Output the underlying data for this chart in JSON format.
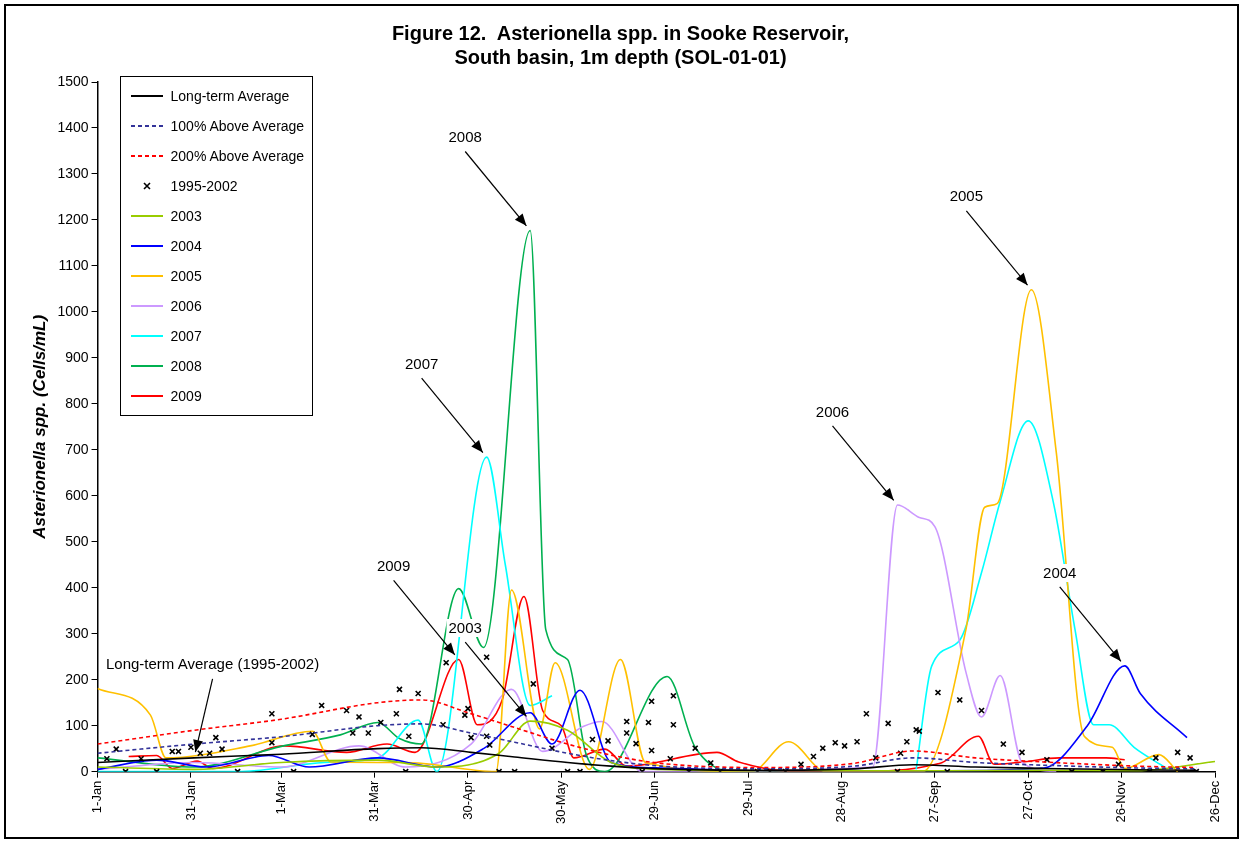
{
  "chart_data": {
    "type": "line",
    "title": "Figure 12.  Asterionella spp. in Sooke Reservoir,\nSouth basin, 1m depth (SOL-01-01)",
    "ylabel": "Asterionella spp. (Cells/mL)",
    "xlim": [
      "--01-01",
      "--12-26"
    ],
    "xticks": [
      {
        "value": "--01-01",
        "label": "1-Jan"
      },
      {
        "value": "--01-31",
        "label": "31-Jan"
      },
      {
        "value": "--03-01",
        "label": "1-Mar"
      },
      {
        "value": "--03-31",
        "label": "31-Mar"
      },
      {
        "value": "--04-30",
        "label": "30-Apr"
      },
      {
        "value": "--05-30",
        "label": "30-May"
      },
      {
        "value": "--06-29",
        "label": "29-Jun"
      },
      {
        "value": "--07-29",
        "label": "29-Jul"
      },
      {
        "value": "--08-28",
        "label": "28-Aug"
      },
      {
        "value": "--09-27",
        "label": "27-Sep"
      },
      {
        "value": "--10-27",
        "label": "27-Oct"
      },
      {
        "value": "--11-26",
        "label": "26-Nov"
      },
      {
        "value": "--12-26",
        "label": "26-Dec"
      }
    ],
    "ylim": [
      0,
      1500
    ],
    "yticks": [
      0,
      100,
      200,
      300,
      400,
      500,
      600,
      700,
      800,
      900,
      1000,
      1100,
      1200,
      1300,
      1400,
      1500
    ],
    "legend": "top left",
    "annotations": [
      {
        "text": "2008",
        "x": "--05-20",
        "y": 1177
      },
      {
        "text": "2005",
        "x": "--10-28",
        "y": 1048
      },
      {
        "text": "2007",
        "x": "--05-06",
        "y": 684
      },
      {
        "text": "2006",
        "x": "--09-15",
        "y": 580
      },
      {
        "text": "2003",
        "x": "--05-20",
        "y": 110
      },
      {
        "text": "2009",
        "x": "--04-27",
        "y": 244
      },
      {
        "text": "2004",
        "x": "--11-27",
        "y": 230
      },
      {
        "text": "Long-term Average (1995-2002)",
        "x": "--02-01",
        "y": 30
      }
    ],
    "series": [
      {
        "name": "Long-term Average",
        "type": "line",
        "marker": "none",
        "line_style": "solid",
        "color": "#000000",
        "x": [
          "--01-01",
          "--02-01",
          "--03-01",
          "--04-01",
          "--04-15",
          "--05-01",
          "--05-15",
          "--06-01",
          "--06-15",
          "--07-01",
          "--08-01",
          "--09-01",
          "--09-20",
          "--10-10",
          "--11-01",
          "--12-01",
          "--12-20"
        ],
        "values": [
          20,
          30,
          38,
          50,
          52,
          42,
          32,
          20,
          12,
          6,
          3,
          6,
          15,
          10,
          7,
          4,
          3
        ]
      },
      {
        "name": "100% Above Average",
        "type": "line",
        "marker": "none",
        "line_style": "dashed",
        "color": "#333399",
        "x": [
          "--01-01",
          "--02-01",
          "--03-01",
          "--04-01",
          "--04-15",
          "--05-01",
          "--05-15",
          "--06-01",
          "--06-15",
          "--07-01",
          "--08-01",
          "--09-01",
          "--09-20",
          "--10-10",
          "--11-01",
          "--12-01",
          "--12-20"
        ],
        "values": [
          40,
          60,
          76,
          100,
          104,
          84,
          64,
          40,
          24,
          12,
          6,
          12,
          30,
          20,
          14,
          8,
          6
        ]
      },
      {
        "name": "200% Above Average",
        "type": "line",
        "marker": "none",
        "line_style": "dashed",
        "color": "#ff0000",
        "x": [
          "--01-01",
          "--02-01",
          "--03-01",
          "--04-01",
          "--04-15",
          "--05-01",
          "--05-15",
          "--06-01",
          "--06-15",
          "--07-01",
          "--08-01",
          "--09-01",
          "--09-20",
          "--10-10",
          "--11-01",
          "--12-01",
          "--12-20"
        ],
        "values": [
          60,
          90,
          114,
          150,
          156,
          126,
          96,
          60,
          36,
          18,
          9,
          18,
          45,
          30,
          21,
          12,
          9
        ]
      },
      {
        "name": "1995-2002",
        "type": "scatter",
        "marker": "cross",
        "color": "#000000",
        "x": [
          "--01-04",
          "--01-07",
          "--01-15",
          "--01-25",
          "--01-27",
          "--01-31",
          "--02-03",
          "--02-06",
          "--02-08",
          "--02-10",
          "--02-26",
          "--02-26",
          "--03-11",
          "--03-14",
          "--03-22",
          "--03-24",
          "--03-26",
          "--03-29",
          "--04-02",
          "--04-07",
          "--04-08",
          "--04-11",
          "--04-14",
          "--04-22",
          "--04-23",
          "--04-29",
          "--04-30",
          "--05-01",
          "--05-06",
          "--05-06",
          "--05-07",
          "--05-21",
          "--05-27",
          "--06-09",
          "--06-14",
          "--06-20",
          "--06-20",
          "--06-23",
          "--06-27",
          "--06-28",
          "--06-28",
          "--07-04",
          "--07-05",
          "--07-05",
          "--07-12",
          "--07-17",
          "--08-15",
          "--08-19",
          "--08-22",
          "--08-26",
          "--08-29",
          "--09-02",
          "--09-05",
          "--09-08",
          "--09-12",
          "--09-16",
          "--09-18",
          "--09-21",
          "--09-22",
          "--09-28",
          "--10-05",
          "--10-12",
          "--10-19",
          "--10-25",
          "--11-02",
          "--11-25",
          "--12-07",
          "--12-14",
          "--12-18",
          "--01-10",
          "--01-20",
          "--02-15",
          "--03-05",
          "--04-10",
          "--05-10",
          "--05-15",
          "--06-01",
          "--06-05",
          "--06-25",
          "--07-10",
          "--07-20",
          "--08-01",
          "--08-05",
          "--08-10",
          "--09-15",
          "--10-01",
          "--11-10",
          "--11-20",
          "--12-05",
          "--12-20"
        ],
        "values": [
          28,
          49,
          28,
          44,
          44,
          53,
          40,
          40,
          74,
          49,
          126,
          63,
          81,
          144,
          133,
          84,
          119,
          84,
          107,
          126,
          179,
          77,
          170,
          102,
          237,
          123,
          137,
          74,
          249,
          77,
          58,
          191,
          51,
          70,
          67,
          109,
          84,
          61,
          107,
          153,
          46,
          28,
          165,
          102,
          51,
          19,
          16,
          33,
          51,
          63,
          56,
          65,
          126,
          30,
          105,
          40,
          65,
          91,
          88,
          172,
          156,
          133,
          60,
          42,
          26,
          16,
          30,
          42,
          30,
          0,
          0,
          0,
          0,
          0,
          0,
          0,
          0,
          0,
          0,
          0,
          0,
          0,
          0,
          0,
          0,
          0,
          0,
          0,
          0,
          0
        ]
      },
      {
        "name": "2003",
        "type": "line",
        "marker": "none",
        "line_style": "solid",
        "color": "#99cc00",
        "x": [
          "--01-01",
          "--02-01",
          "--03-01",
          "--04-01",
          "--04-20",
          "--05-10",
          "--05-20",
          "--06-01",
          "--06-15",
          "--07-01",
          "--08-01",
          "--09-01",
          "--10-01",
          "--11-01",
          "--12-01",
          "--12-26"
        ],
        "values": [
          10,
          5,
          20,
          25,
          10,
          40,
          110,
          90,
          20,
          5,
          2,
          2,
          2,
          3,
          2,
          22
        ]
      },
      {
        "name": "2004",
        "type": "line",
        "marker": "none",
        "line_style": "solid",
        "color": "#0000ff",
        "x": [
          "--01-01",
          "--01-20",
          "--02-05",
          "--02-25",
          "--03-10",
          "--04-01",
          "--04-20",
          "--05-05",
          "--05-20",
          "--05-27",
          "--06-05",
          "--06-15",
          "--07-01",
          "--08-01",
          "--09-01",
          "--10-01",
          "--11-01",
          "--11-15",
          "--11-27",
          "--12-02",
          "--12-17"
        ],
        "values": [
          5,
          25,
          10,
          35,
          10,
          30,
          10,
          50,
          128,
          60,
          177,
          20,
          8,
          2,
          2,
          2,
          8,
          100,
          230,
          170,
          74
        ]
      },
      {
        "name": "2005",
        "type": "line",
        "marker": "none",
        "line_style": "solid",
        "color": "#ffc000",
        "x": [
          "--01-01",
          "--01-18",
          "--01-23",
          "--02-19",
          "--03-11",
          "--03-17",
          "--04-10",
          "--05-09",
          "--05-14",
          "--05-23",
          "--05-28",
          "--06-08",
          "--06-18",
          "--06-26",
          "--07-30",
          "--08-11",
          "--08-23",
          "--09-23",
          "--10-07",
          "--10-13",
          "--10-17",
          "--10-28",
          "--11-05",
          "--11-14",
          "--11-23",
          "--11-27",
          "--12-08",
          "--12-14"
        ],
        "values": [
          181,
          123,
          30,
          56,
          88,
          21,
          20,
          0,
          395,
          93,
          237,
          5,
          244,
          20,
          0,
          65,
          0,
          0,
          310,
          575,
          583,
          1048,
          695,
          77,
          53,
          7,
          37,
          0
        ]
      },
      {
        "name": "2006",
        "type": "line",
        "marker": "none",
        "line_style": "solid",
        "color": "#cc99ff",
        "x": [
          "--01-01",
          "--02-01",
          "--03-01",
          "--03-26",
          "--04-10",
          "--05-01",
          "--05-14",
          "--05-24",
          "--06-06",
          "--06-12",
          "--06-25",
          "--09-07",
          "--09-15",
          "--09-22",
          "--09-27",
          "--10-07",
          "--10-12",
          "--10-18",
          "--10-25",
          "--11-05"
        ],
        "values": [
          5,
          20,
          10,
          56,
          10,
          60,
          179,
          44,
          98,
          109,
          0,
          10,
          580,
          553,
          533,
          216,
          119,
          209,
          20,
          0
        ]
      },
      {
        "name": "2007",
        "type": "line",
        "marker": "none",
        "line_style": "solid",
        "color": "#00ffff",
        "x": [
          "--01-01",
          "--02-15",
          "--03-15",
          "--04-01",
          "--04-14",
          "--04-20",
          "--05-06",
          "--05-12",
          "--05-20",
          "--05-27",
          "--07-15",
          "--09-21",
          "--09-26",
          "--10-05",
          "--10-12",
          "--10-18",
          "--10-27",
          "--11-04",
          "--11-11",
          "--11-17",
          "--11-22",
          "--11-30",
          "--12-10"
        ],
        "values": [
          0,
          0,
          20,
          30,
          112,
          0,
          684,
          450,
          144,
          165,
          null,
          5,
          230,
          286,
          433,
          588,
          763,
          588,
          310,
          102,
          102,
          53,
          9
        ]
      },
      {
        "name": "2008",
        "type": "line",
        "marker": "none",
        "line_style": "solid",
        "color": "#00b050",
        "x": [
          "--01-01",
          "--02-01",
          "--03-01",
          "--03-20",
          "--04-01",
          "--04-08",
          "--04-15",
          "--04-27",
          "--05-05",
          "--05-20",
          "--05-25",
          "--06-01",
          "--06-07",
          "--06-13",
          "--07-03",
          "--07-12",
          "--07-25",
          "--08-01"
        ],
        "values": [
          30,
          10,
          55,
          80,
          107,
          72,
          60,
          398,
          270,
          1177,
          309,
          244,
          37,
          0,
          207,
          53,
          0,
          0
        ]
      },
      {
        "name": "2009",
        "type": "line",
        "marker": "none",
        "line_style": "solid",
        "color": "#ff0000",
        "x": [
          "--01-11",
          "--01-20",
          "--01-25",
          "--02-02",
          "--02-07",
          "--03-02",
          "--03-22",
          "--04-04",
          "--04-13",
          "--04-27",
          "--05-03",
          "--05-11",
          "--05-18",
          "--05-24",
          "--05-30",
          "--06-03",
          "--06-13",
          "--06-20",
          "--07-19",
          "--07-26",
          "--08-14",
          "--08-29",
          "--09-29",
          "--10-11",
          "--10-16",
          "--10-25",
          "--11-06",
          "--11-21",
          "--11-27"
        ],
        "values": [
          33,
          35,
          7,
          23,
          7,
          56,
          42,
          60,
          42,
          244,
          102,
          156,
          381,
          133,
          100,
          30,
          49,
          12,
          42,
          21,
          0,
          0,
          19,
          77,
          16,
          21,
          30,
          30,
          26
        ]
      }
    ]
  }
}
